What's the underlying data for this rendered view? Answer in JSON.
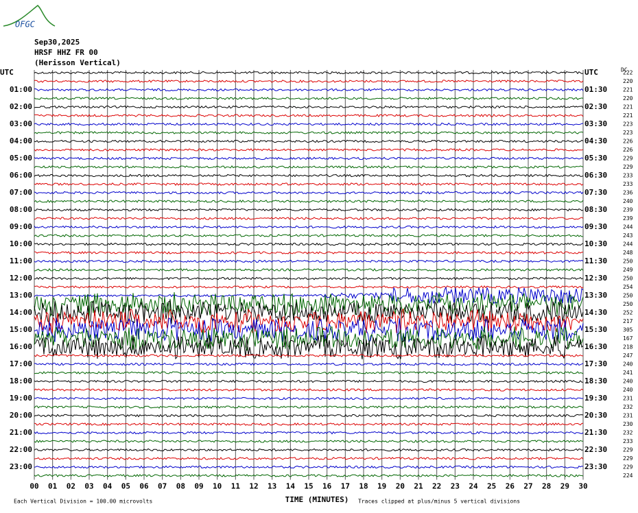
{
  "logo": "OFGC",
  "header": {
    "date": "Sep30,2025",
    "station": "HRSF HHZ FR 00",
    "name": "(Herisson Vertical)"
  },
  "left_labels": [
    "UTC",
    "01:00",
    "02:00",
    "03:00",
    "04:00",
    "05:00",
    "06:00",
    "07:00",
    "08:00",
    "09:00",
    "10:00",
    "11:00",
    "12:00",
    "13:00",
    "14:00",
    "15:00",
    "16:00",
    "17:00",
    "18:00",
    "19:00",
    "20:00",
    "21:00",
    "22:00",
    "23:00"
  ],
  "right_labels": [
    "UTC",
    "01:30",
    "02:30",
    "03:30",
    "04:30",
    "05:30",
    "06:30",
    "07:30",
    "08:30",
    "09:30",
    "10:30",
    "11:30",
    "12:30",
    "13:30",
    "14:30",
    "15:30",
    "16:30",
    "17:30",
    "18:30",
    "19:30",
    "20:30",
    "21:30",
    "22:30",
    "23:30"
  ],
  "dc_title": "DC",
  "dc_values": [
    222,
    220,
    221,
    220,
    221,
    221,
    223,
    223,
    226,
    226,
    229,
    229,
    233,
    233,
    236,
    240,
    239,
    239,
    244,
    243,
    244,
    248,
    250,
    249,
    250,
    254,
    250,
    250,
    252,
    217,
    305,
    167,
    218,
    247,
    240,
    241,
    240,
    240,
    231,
    232,
    231,
    230,
    232,
    233,
    229,
    229,
    229,
    224
  ],
  "x_ticks": [
    "00",
    "01",
    "02",
    "03",
    "04",
    "05",
    "06",
    "07",
    "08",
    "09",
    "10",
    "11",
    "12",
    "13",
    "14",
    "15",
    "16",
    "17",
    "18",
    "19",
    "20",
    "21",
    "22",
    "23",
    "24",
    "25",
    "26",
    "27",
    "28",
    "29",
    "30"
  ],
  "footer": {
    "scale_note": "Each Vertical Division =  100.00 microvolts",
    "x_label": "TIME (MINUTES)",
    "clip_note": "Traces clipped at plus/minus 5 vertical divisions"
  }
}
